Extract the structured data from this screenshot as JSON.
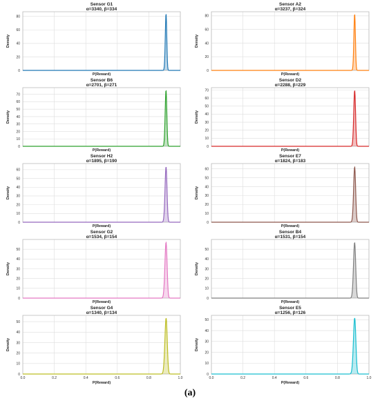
{
  "caption": "(a)",
  "chart_data": [
    {
      "type": "area",
      "title": "Sensor G1",
      "subtitle": "α=3340, β=334",
      "xlabel": "P(Reward)",
      "ylabel": "Density",
      "alpha": 3340,
      "beta": 334,
      "xlim": [
        0,
        1
      ],
      "ylim": [
        0,
        87
      ],
      "yticks": [
        0,
        20,
        40,
        60,
        80
      ],
      "xticks": [
        0.0,
        0.2,
        0.4,
        0.6,
        0.8,
        1.0
      ],
      "show_xtick_labels": false,
      "grid": true,
      "color": "#1f77b4"
    },
    {
      "type": "area",
      "title": "Sensor A2",
      "subtitle": "α=3237, β=324",
      "xlabel": "P(Reward)",
      "ylabel": "Density",
      "alpha": 3237,
      "beta": 324,
      "xlim": [
        0,
        1
      ],
      "ylim": [
        0,
        86
      ],
      "yticks": [
        0,
        20,
        40,
        60,
        80
      ],
      "xticks": [
        0.0,
        0.2,
        0.4,
        0.6,
        0.8,
        1.0
      ],
      "show_xtick_labels": false,
      "grid": true,
      "color": "#ff7f0e"
    },
    {
      "type": "area",
      "title": "Sensor B6",
      "subtitle": "α=2701, β=271",
      "xlabel": "P(Reward)",
      "ylabel": "Density",
      "alpha": 2701,
      "beta": 271,
      "xlim": [
        0,
        1
      ],
      "ylim": [
        0,
        79
      ],
      "yticks": [
        0,
        10,
        20,
        30,
        40,
        50,
        60,
        70
      ],
      "xticks": [
        0.0,
        0.2,
        0.4,
        0.6,
        0.8,
        1.0
      ],
      "show_xtick_labels": false,
      "grid": true,
      "color": "#2ca02c"
    },
    {
      "type": "area",
      "title": "Sensor D2",
      "subtitle": "α=2288, β=229",
      "xlabel": "P(Reward)",
      "ylabel": "Density",
      "alpha": 2288,
      "beta": 229,
      "xlim": [
        0,
        1
      ],
      "ylim": [
        0,
        73
      ],
      "yticks": [
        0,
        10,
        20,
        30,
        40,
        50,
        60,
        70
      ],
      "xticks": [
        0.0,
        0.2,
        0.4,
        0.6,
        0.8,
        1.0
      ],
      "show_xtick_labels": false,
      "grid": true,
      "color": "#d62728"
    },
    {
      "type": "area",
      "title": "Sensor H2",
      "subtitle": "α=1895, β=190",
      "xlabel": "P(Reward)",
      "ylabel": "Density",
      "alpha": 1895,
      "beta": 190,
      "xlim": [
        0,
        1
      ],
      "ylim": [
        0,
        67
      ],
      "yticks": [
        0,
        10,
        20,
        30,
        40,
        50,
        60
      ],
      "xticks": [
        0.0,
        0.2,
        0.4,
        0.6,
        0.8,
        1.0
      ],
      "show_xtick_labels": false,
      "grid": true,
      "color": "#9467bd"
    },
    {
      "type": "area",
      "title": "Sensor E7",
      "subtitle": "α=1824, β=183",
      "xlabel": "P(Reward)",
      "ylabel": "Density",
      "alpha": 1824,
      "beta": 183,
      "xlim": [
        0,
        1
      ],
      "ylim": [
        0,
        66
      ],
      "yticks": [
        0,
        10,
        20,
        30,
        40,
        50,
        60
      ],
      "xticks": [
        0.0,
        0.2,
        0.4,
        0.6,
        0.8,
        1.0
      ],
      "show_xtick_labels": false,
      "grid": true,
      "color": "#8c564b"
    },
    {
      "type": "area",
      "title": "Sensor G2",
      "subtitle": "α=1534, β=154",
      "xlabel": "P(Reward)",
      "ylabel": "Density",
      "alpha": 1534,
      "beta": 154,
      "xlim": [
        0,
        1
      ],
      "ylim": [
        0,
        60
      ],
      "yticks": [
        0,
        10,
        20,
        30,
        40,
        50
      ],
      "xticks": [
        0.0,
        0.2,
        0.4,
        0.6,
        0.8,
        1.0
      ],
      "show_xtick_labels": false,
      "grid": true,
      "color": "#e377c2"
    },
    {
      "type": "area",
      "title": "Sensor B4",
      "subtitle": "α=1531, β=154",
      "xlabel": "P(Reward)",
      "ylabel": "Density",
      "alpha": 1531,
      "beta": 154,
      "xlim": [
        0,
        1
      ],
      "ylim": [
        0,
        60
      ],
      "yticks": [
        0,
        10,
        20,
        30,
        40,
        50
      ],
      "xticks": [
        0.0,
        0.2,
        0.4,
        0.6,
        0.8,
        1.0
      ],
      "show_xtick_labels": false,
      "grid": true,
      "color": "#7f7f7f"
    },
    {
      "type": "area",
      "title": "Sensor G4",
      "subtitle": "α=1340, β=134",
      "xlabel": "P(Reward)",
      "ylabel": "Density",
      "alpha": 1340,
      "beta": 134,
      "xlim": [
        0,
        1
      ],
      "ylim": [
        0,
        56
      ],
      "yticks": [
        0,
        10,
        20,
        30,
        40,
        50
      ],
      "xticks": [
        0.0,
        0.2,
        0.4,
        0.6,
        0.8,
        1.0
      ],
      "show_xtick_labels": true,
      "grid": true,
      "color": "#bcbd22"
    },
    {
      "type": "area",
      "title": "Sensor E5",
      "subtitle": "α=1256, β=126",
      "xlabel": "P(Reward)",
      "ylabel": "Density",
      "alpha": 1256,
      "beta": 126,
      "xlim": [
        0,
        1
      ],
      "ylim": [
        0,
        54
      ],
      "yticks": [
        0,
        10,
        20,
        30,
        40,
        50
      ],
      "xticks": [
        0.0,
        0.2,
        0.4,
        0.6,
        0.8,
        1.0
      ],
      "show_xtick_labels": true,
      "grid": true,
      "color": "#17becf"
    }
  ]
}
